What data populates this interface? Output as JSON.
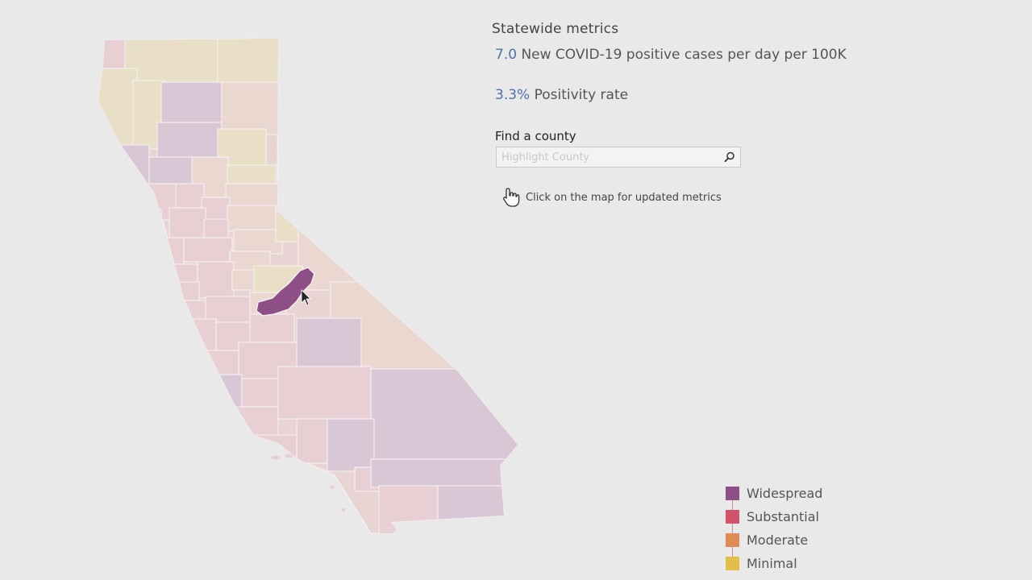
{
  "panel": {
    "title": "Statewide metrics",
    "cases": {
      "value": "7.0",
      "label": "New COVID-19 positive cases per day per 100K"
    },
    "positivity": {
      "value": "3.3%",
      "label": "Positivity rate"
    },
    "find_label": "Find a county",
    "search_placeholder": "Highlight County",
    "search_value": "",
    "hint": "Click on the map for updated metrics",
    "search_icon": "search-icon",
    "hint_icon": "hand-pointer-icon"
  },
  "legend": {
    "items": [
      {
        "label": "Widespread",
        "color": "#8e4f86"
      },
      {
        "label": "Substantial",
        "color": "#d4526a"
      },
      {
        "label": "Moderate",
        "color": "#e08a56"
      },
      {
        "label": "Minimal",
        "color": "#e3bf49"
      }
    ]
  },
  "map": {
    "faded_colors": {
      "widespread": "#d9c7d6",
      "substantial": "#e8cfd3",
      "moderate": "#ead7d0",
      "minimal": "#e9dfc6"
    },
    "highlight_color": "#8e4f86",
    "cursor_icon": "arrow-cursor-icon"
  }
}
